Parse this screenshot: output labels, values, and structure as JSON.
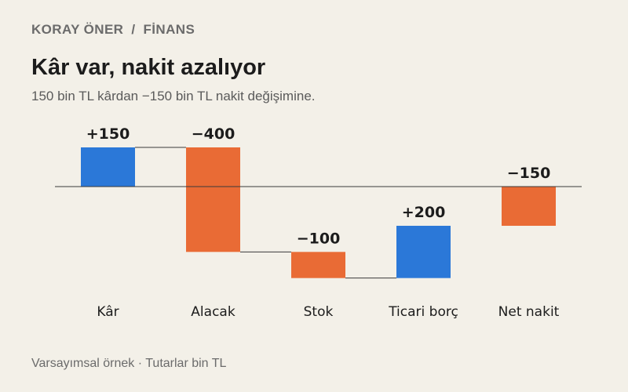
{
  "header": {
    "author": "KORAY ÖNER",
    "separator": "/",
    "section": "FİNANS"
  },
  "title": "Kâr var, nakit azalıyor",
  "subtitle": "150 bin TL kârdan −150 bin TL nakit değişimine.",
  "footer": "Varsayımsal örnek · Tutarlar bin TL",
  "colors": {
    "positive": "#2b78d8",
    "negative": "#e96b35",
    "connector": "#3a3a3a",
    "baseline": "#3a3a3a"
  },
  "chart_data": {
    "type": "waterfall",
    "categories": [
      "Kâr",
      "Alacak",
      "Stok",
      "Ticari borç",
      "Net nakit"
    ],
    "values": [
      150,
      -400,
      -100,
      200,
      -150
    ],
    "value_labels": [
      "+150",
      "−400",
      "−100",
      "+200",
      "−150"
    ],
    "kinds": [
      "delta",
      "delta",
      "delta",
      "delta",
      "total"
    ],
    "ylim": [
      -350,
      150
    ],
    "grid": false,
    "legend": false
  }
}
